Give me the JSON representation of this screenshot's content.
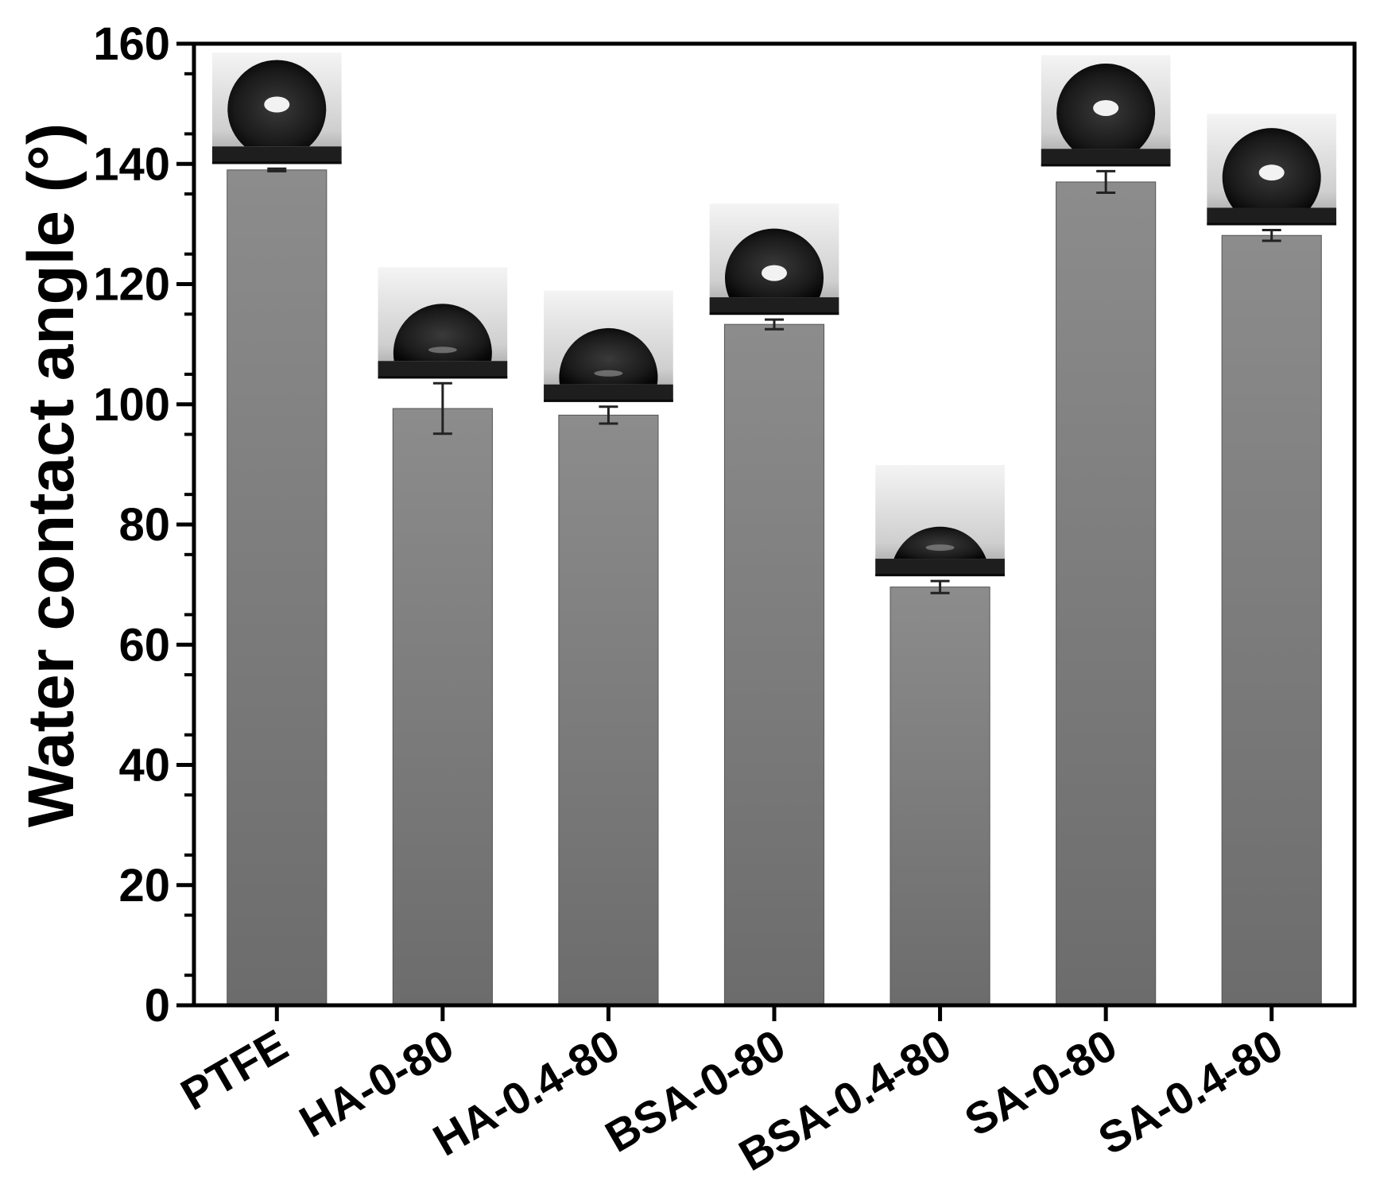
{
  "chart_data": {
    "type": "bar",
    "title": "",
    "xlabel": "",
    "ylabel": "Water contact angle (°)",
    "ylim": [
      0,
      160
    ],
    "yticks": [
      0,
      20,
      40,
      60,
      80,
      100,
      120,
      140,
      160
    ],
    "categories": [
      "PTFE",
      "HA-0-80",
      "HA-0.4-80",
      "BSA-0-80",
      "BSA-0.4-80",
      "SA-0-80",
      "SA-0.4-80"
    ],
    "values": [
      139,
      99.3,
      98.2,
      113.3,
      69.6,
      137,
      128.1
    ],
    "errors": [
      0.2,
      4.2,
      1.4,
      0.8,
      1.0,
      1.8,
      0.9
    ],
    "grid": false,
    "legend": "none",
    "insets": "droplet photograph above each bar",
    "colors": {
      "bar_top": "#8c8c8c",
      "bar_bottom": "#6e6e6e",
      "axis": "#000000"
    }
  }
}
